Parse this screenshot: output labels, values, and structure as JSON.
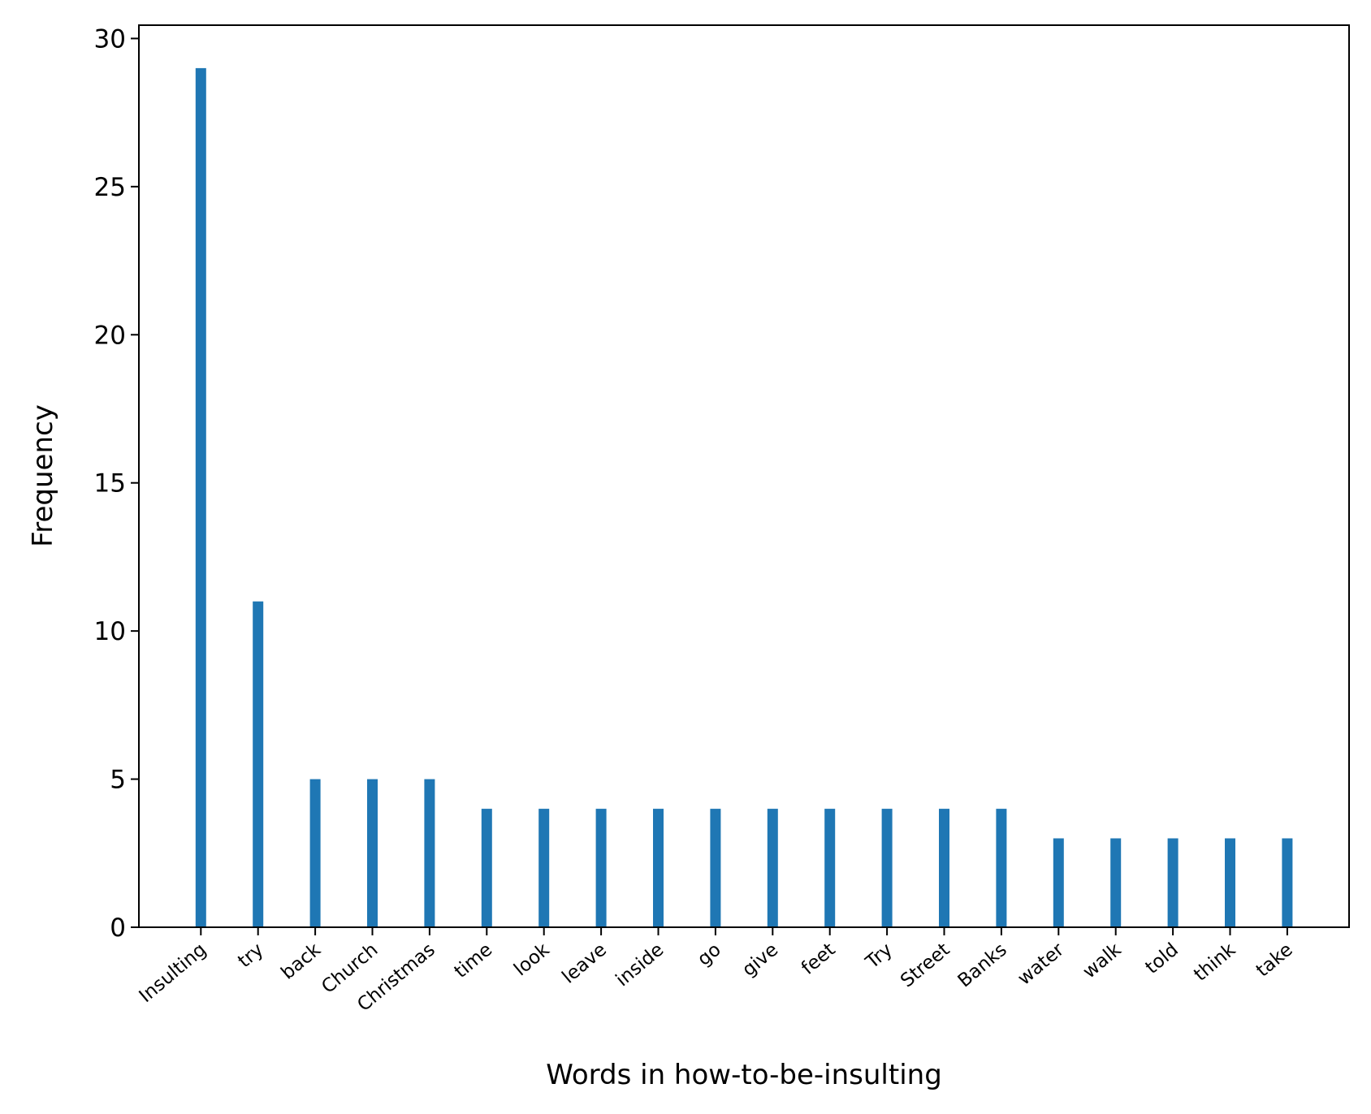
{
  "chart_data": {
    "type": "bar",
    "xlabel": "Words in how-to-be-insulting",
    "ylabel": "Frequency",
    "categories": [
      "Insulting",
      "try",
      "back",
      "Church",
      "Christmas",
      "time",
      "look",
      "leave",
      "inside",
      "go",
      "give",
      "feet",
      "Try",
      "Street",
      "Banks",
      "water",
      "walk",
      "told",
      "think",
      "take"
    ],
    "values": [
      29,
      11,
      5,
      5,
      5,
      4,
      4,
      4,
      4,
      4,
      4,
      4,
      4,
      4,
      4,
      3,
      3,
      3,
      3,
      3
    ],
    "ylim": [
      0,
      30.45
    ],
    "yticks": [
      0,
      5,
      10,
      15,
      20,
      25,
      30
    ],
    "ytick_labels": [
      "0",
      "5",
      "10",
      "15",
      "20",
      "25",
      "30"
    ],
    "grid": false,
    "legend": "none",
    "bar_color": "#1f77b4"
  }
}
